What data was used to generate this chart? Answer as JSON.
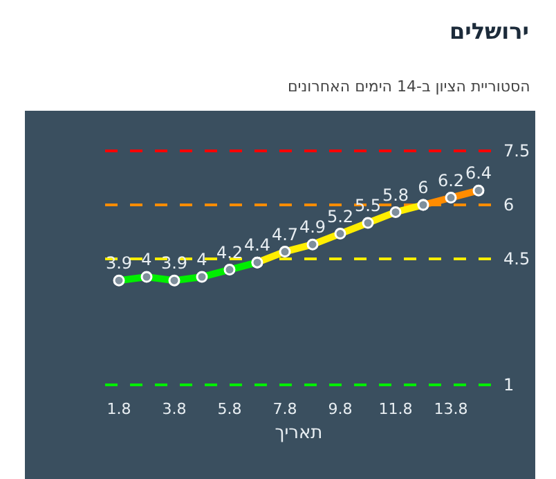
{
  "chart_data": {
    "type": "line",
    "title": "ירושלים",
    "subtitle": "הסטוריית הציון ב-14 הימים האחרונים",
    "xlabel": "תאריך",
    "categories": [
      "1.8",
      null,
      "3.8",
      null,
      "5.8",
      null,
      "7.8",
      null,
      "9.8",
      null,
      "11.8",
      null,
      "13.8",
      null
    ],
    "series": [
      {
        "color": "#00ee00",
        "values": [
          3.9,
          4,
          3.9,
          4,
          4.2,
          4.4,
          null,
          null,
          null,
          null,
          null,
          null,
          null,
          null
        ],
        "value_labels": [
          "3.9",
          "4",
          "3.9",
          "4",
          "4.2",
          "4.4",
          null,
          null,
          null,
          null,
          null,
          null,
          null,
          null
        ]
      },
      {
        "color": "#ffee00",
        "values": [
          null,
          null,
          null,
          null,
          null,
          4.4,
          4.7,
          4.9,
          5.2,
          5.5,
          5.8,
          6,
          null,
          null
        ],
        "value_labels": [
          null,
          null,
          null,
          null,
          null,
          null,
          "4.7",
          "4.9",
          "5.2",
          "5.5",
          "5.8",
          "6",
          null,
          null
        ]
      },
      {
        "color": "#ff8c00",
        "values": [
          null,
          null,
          null,
          null,
          null,
          null,
          null,
          null,
          null,
          null,
          null,
          6,
          6.2,
          6.4
        ],
        "value_labels": [
          null,
          null,
          null,
          null,
          null,
          null,
          null,
          null,
          null,
          null,
          null,
          null,
          "6.2",
          "6.4"
        ]
      }
    ],
    "tick_labels": "x",
    "marker": "circle",
    "line_style": "solid",
    "ref_lines": [
      {
        "axis": "y",
        "value": 7.5,
        "label": "7.5",
        "color": "#ff0000",
        "line_style": "dashed"
      },
      {
        "axis": "y",
        "value": 6,
        "label": "6",
        "color": "#ff8c00",
        "line_style": "dashed"
      },
      {
        "axis": "y",
        "value": 4.5,
        "label": "4.5",
        "color": "#ffee00",
        "line_style": "dashed"
      },
      {
        "axis": "y",
        "value": 1,
        "label": "1",
        "color": "#00ee00",
        "line_style": "dashed"
      }
    ]
  }
}
